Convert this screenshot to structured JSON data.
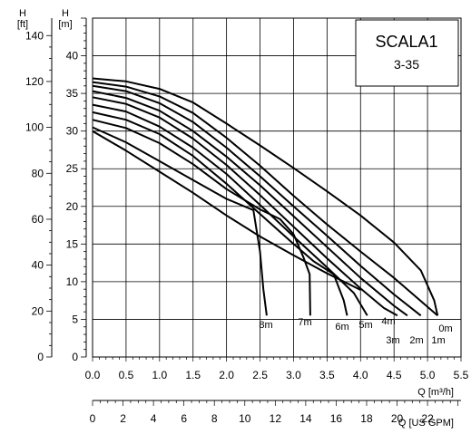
{
  "chart_data": {
    "type": "line",
    "title": "SCALA1",
    "subtitle": "3-35",
    "xlabel": "Q [m³/h]",
    "x2label": "Q [US GPM]",
    "ylabel": "H\n[m]",
    "y2label": "H\n[ft]",
    "xlim": [
      0,
      5.5
    ],
    "ylim": [
      0,
      45
    ],
    "x2lim": [
      0,
      24.2
    ],
    "y2lim": [
      0,
      147.6
    ],
    "grid": true,
    "x_ticks": [
      "0.0",
      "0.5",
      "1.0",
      "1.5",
      "2.0",
      "2.5",
      "3.0",
      "3.5",
      "4.0",
      "4.5",
      "5.0",
      "5.5"
    ],
    "y_ticks": [
      "0",
      "5",
      "10",
      "15",
      "20",
      "25",
      "30",
      "35",
      "40"
    ],
    "x2_ticks": [
      "0",
      "2",
      "4",
      "6",
      "8",
      "10",
      "12",
      "14",
      "16",
      "18",
      "20",
      "22"
    ],
    "y2_ticks": [
      "0",
      "20",
      "40",
      "60",
      "80",
      "100",
      "120",
      "140"
    ],
    "series": [
      {
        "name": "0m",
        "x": [
          0,
          0.5,
          1.0,
          1.5,
          2.0,
          2.5,
          3.0,
          3.5,
          4.0,
          4.5,
          4.9,
          5.1,
          5.15
        ],
        "y": [
          37,
          36.6,
          35.6,
          33.8,
          31.0,
          28.1,
          25.1,
          22.0,
          18.8,
          15.2,
          11.5,
          7.5,
          5.5
        ]
      },
      {
        "name": "1m",
        "x": [
          0,
          0.5,
          1.0,
          1.5,
          2.0,
          2.5,
          3.0,
          3.5,
          4.0,
          4.5,
          5.15
        ],
        "y": [
          36.5,
          35.9,
          34.6,
          32.4,
          29.1,
          25.4,
          21.4,
          17.6,
          14.0,
          10.5,
          5.5
        ]
      },
      {
        "name": "2m",
        "x": [
          0,
          0.5,
          1.0,
          1.5,
          2.0,
          2.5,
          3.0,
          3.5,
          4.0,
          4.5,
          4.9
        ],
        "y": [
          36.0,
          35.3,
          33.7,
          31.2,
          27.8,
          24.0,
          20.0,
          16.1,
          12.1,
          8.3,
          5.5
        ]
      },
      {
        "name": "3m",
        "x": [
          0,
          0.5,
          1.0,
          1.5,
          2.0,
          2.5,
          3.0,
          3.5,
          4.0,
          4.5,
          4.7
        ],
        "y": [
          35.3,
          34.4,
          32.7,
          30.0,
          26.6,
          22.8,
          18.7,
          14.6,
          10.5,
          6.8,
          5.5
        ]
      },
      {
        "name": "4m",
        "x": [
          0,
          0.5,
          1.0,
          1.5,
          2.0,
          2.5,
          3.0,
          3.5,
          4.0,
          4.35,
          4.55
        ],
        "y": [
          34.5,
          33.6,
          31.8,
          29.0,
          25.5,
          21.5,
          17.3,
          13.1,
          9.1,
          6.5,
          5.5
        ]
      },
      {
        "name": "5m",
        "x": [
          0,
          0.5,
          1.0,
          1.5,
          2.0,
          2.5,
          3.0,
          3.5,
          3.9,
          4.1
        ],
        "y": [
          33.5,
          32.6,
          30.6,
          27.8,
          24.3,
          20.2,
          16.0,
          11.9,
          8.5,
          5.5
        ]
      },
      {
        "name": "6m",
        "x": [
          0,
          0.5,
          1.0,
          1.5,
          2.0,
          2.5,
          3.0,
          3.3,
          3.6,
          3.75,
          3.8
        ],
        "y": [
          32.5,
          31.5,
          29.6,
          26.7,
          23.0,
          19.0,
          15.0,
          12.7,
          11.0,
          7.5,
          5.5
        ]
      },
      {
        "name": "7m",
        "x": [
          0,
          0.5,
          1.0,
          1.5,
          2.0,
          2.5,
          2.8,
          3.0,
          3.15,
          3.24,
          3.25
        ],
        "y": [
          31.5,
          30.4,
          28.4,
          25.6,
          22.3,
          19.6,
          18.3,
          16.3,
          13.2,
          11.0,
          5.5
        ]
      },
      {
        "name": "8m",
        "x": [
          0,
          0.5,
          1.0,
          1.5,
          2.0,
          2.4,
          2.5,
          2.55,
          2.6
        ],
        "y": [
          30.5,
          28.5,
          26.0,
          23.5,
          21.0,
          19.5,
          14.0,
          9.0,
          5.5
        ]
      },
      {
        "name": "",
        "x": [
          0,
          0.5,
          1.0,
          1.5,
          2.0,
          2.5,
          3.0,
          3.5,
          4.0
        ],
        "y": [
          30.0,
          27.4,
          24.6,
          21.8,
          18.8,
          16.0,
          13.5,
          11.1,
          8.9
        ]
      }
    ]
  }
}
